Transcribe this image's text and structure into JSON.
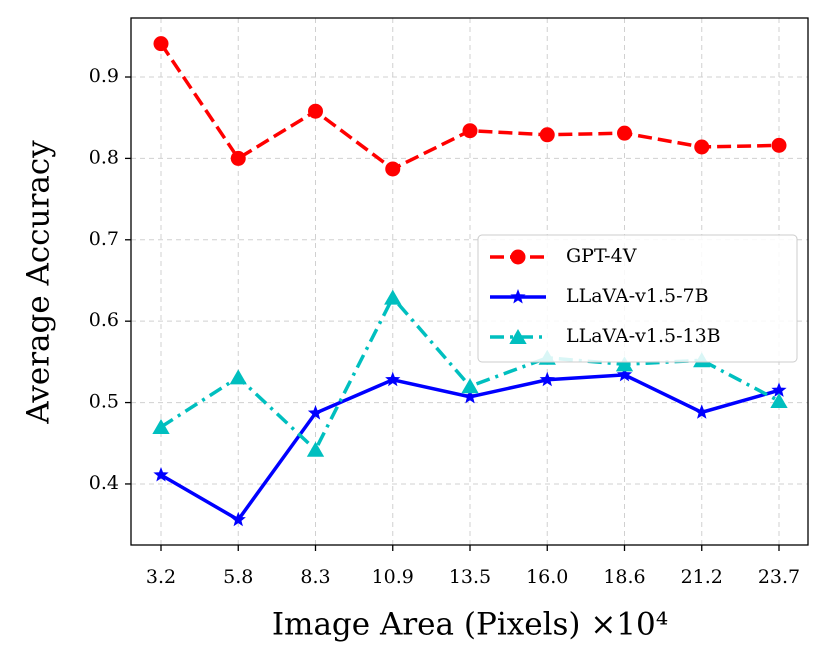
{
  "chart_data": {
    "type": "line",
    "xlabel": "Image Area (Pixels) ×10⁴",
    "ylabel": "Average Accuracy",
    "categories": [
      "3.2",
      "5.8",
      "8.3",
      "10.9",
      "13.5",
      "16.0",
      "18.6",
      "21.2",
      "23.7"
    ],
    "series": [
      {
        "name": "GPT-4V",
        "color": "#ff0000",
        "linestyle": "dashed",
        "marker": "circle",
        "values": [
          0.941,
          0.8,
          0.858,
          0.787,
          0.834,
          0.829,
          0.831,
          0.814,
          0.816
        ]
      },
      {
        "name": "LLaVA-v1.5-7B",
        "color": "#0000ff",
        "linestyle": "solid",
        "marker": "star",
        "values": [
          0.411,
          0.356,
          0.487,
          0.528,
          0.507,
          0.528,
          0.534,
          0.488,
          0.515
        ]
      },
      {
        "name": "LLaVA-v1.5-13B",
        "color": "#00bfbf",
        "linestyle": "dashdot",
        "marker": "triangle",
        "values": [
          0.47,
          0.531,
          0.442,
          0.629,
          0.52,
          0.555,
          0.547,
          0.552,
          0.502
        ]
      }
    ],
    "ylim": [
      0.325,
      0.9725
    ],
    "yticks": [
      0.4,
      0.5,
      0.6,
      0.7,
      0.8,
      0.9
    ],
    "grid": true,
    "legend": "center right"
  }
}
